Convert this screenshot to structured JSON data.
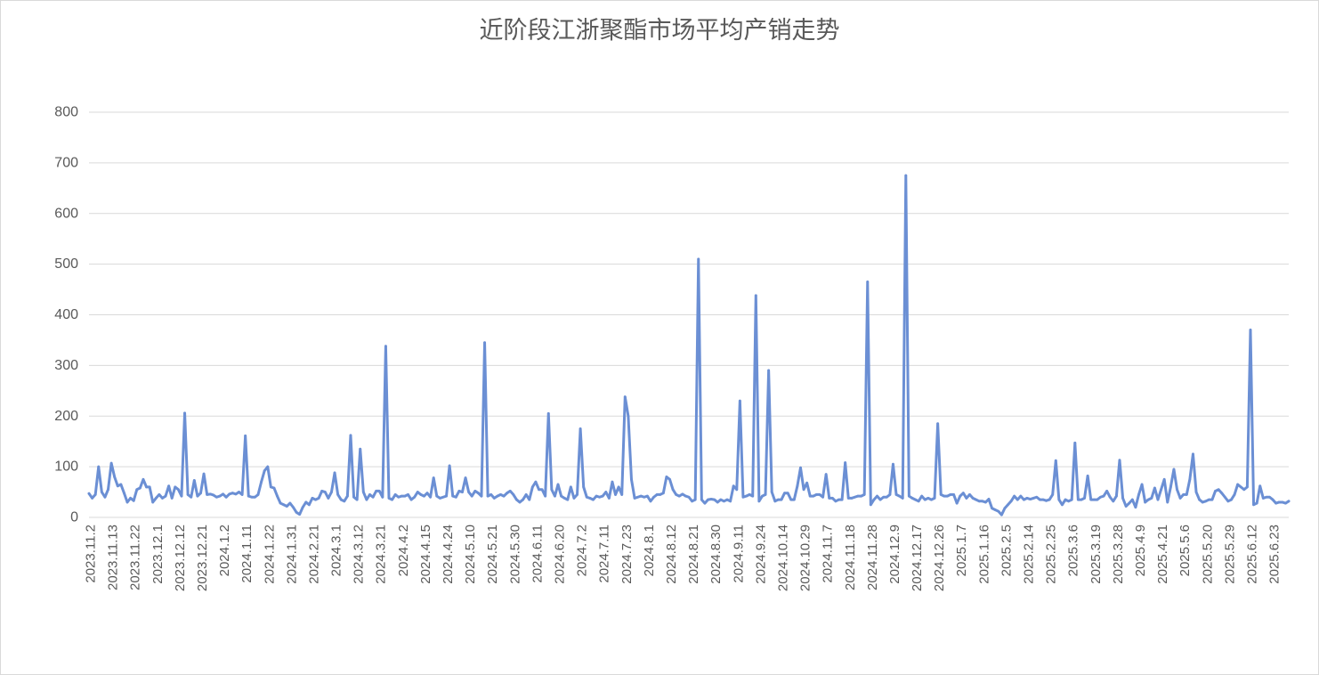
{
  "chart_data": {
    "type": "line",
    "title": "近阶段江浙聚酯市场平均产销走势",
    "ylim": [
      0,
      800
    ],
    "y_ticks": [
      0,
      100,
      200,
      300,
      400,
      500,
      600,
      700,
      800
    ],
    "grid": true,
    "x_label_interval": 7,
    "x_tick_labels": [
      "2023.11.2",
      "2023.11.13",
      "2023.11.22",
      "2023.12.1",
      "2023.12.12",
      "2023.12.21",
      "2024.1.2",
      "2024.1.11",
      "2024.1.22",
      "2024.1.31",
      "2024.2.21",
      "2024.3.1",
      "2024.3.12",
      "2024.3.21",
      "2024.4.2",
      "2024.4.15",
      "2024.4.24",
      "2024.5.10",
      "2024.5.21",
      "2024.5.30",
      "2024.6.11",
      "2024.6.20",
      "2024.7.2",
      "2024.7.11",
      "2024.7.23",
      "2024.8.1",
      "2024.8.12",
      "2024.8.21",
      "2024.8.30",
      "2024.9.11",
      "2024.9.24",
      "2024.10.14",
      "2024.10.29",
      "2024.11.7",
      "2024.11.18",
      "2024.11.28",
      "2024.12.9",
      "2024.12.17",
      "2024.12.26",
      "2025.1.7",
      "2025.1.16",
      "2025.2.5",
      "2025.2.14",
      "2025.2.25",
      "2025.3.6",
      "2025.3.19",
      "2025.3.28",
      "2025.4.9",
      "2025.4.21",
      "2025.5.6",
      "2025.5.20",
      "2025.5.29",
      "2025.6.12",
      "2025.6.23"
    ],
    "values": [
      47,
      38,
      45,
      100,
      50,
      40,
      55,
      107,
      80,
      62,
      65,
      48,
      30,
      38,
      33,
      55,
      58,
      75,
      60,
      60,
      30,
      38,
      45,
      38,
      42,
      62,
      38,
      60,
      55,
      42,
      206,
      45,
      40,
      73,
      42,
      48,
      86,
      45,
      46,
      44,
      40,
      42,
      46,
      40,
      46,
      48,
      46,
      50,
      45,
      161,
      42,
      40,
      40,
      45,
      70,
      92,
      100,
      60,
      58,
      42,
      28,
      25,
      22,
      28,
      20,
      10,
      6,
      20,
      30,
      25,
      38,
      35,
      38,
      52,
      50,
      38,
      50,
      88,
      45,
      35,
      32,
      42,
      162,
      40,
      35,
      135,
      50,
      35,
      45,
      40,
      52,
      52,
      40,
      338,
      38,
      35,
      45,
      40,
      42,
      42,
      45,
      35,
      40,
      50,
      45,
      42,
      48,
      40,
      78,
      42,
      38,
      40,
      42,
      102,
      42,
      40,
      52,
      50,
      78,
      50,
      42,
      52,
      48,
      42,
      345,
      42,
      45,
      38,
      42,
      45,
      42,
      48,
      52,
      45,
      35,
      30,
      35,
      45,
      35,
      60,
      70,
      55,
      55,
      42,
      205,
      55,
      42,
      65,
      42,
      38,
      35,
      60,
      38,
      45,
      175,
      60,
      40,
      38,
      35,
      42,
      40,
      42,
      50,
      38,
      70,
      45,
      60,
      45,
      238,
      200,
      75,
      38,
      40,
      42,
      40,
      42,
      32,
      40,
      45,
      45,
      48,
      80,
      75,
      55,
      45,
      42,
      46,
      42,
      40,
      32,
      35,
      510,
      35,
      28,
      35,
      36,
      35,
      30,
      35,
      32,
      35,
      32,
      62,
      55,
      230,
      40,
      42,
      45,
      42,
      438,
      32,
      42,
      45,
      290,
      50,
      32,
      35,
      35,
      48,
      48,
      35,
      35,
      62,
      98,
      55,
      68,
      42,
      42,
      45,
      45,
      40,
      85,
      38,
      38,
      32,
      35,
      35,
      108,
      38,
      38,
      40,
      42,
      42,
      45,
      465,
      25,
      35,
      42,
      35,
      40,
      40,
      45,
      105,
      45,
      42,
      38,
      675,
      42,
      38,
      35,
      32,
      42,
      35,
      38,
      35,
      38,
      185,
      45,
      42,
      42,
      45,
      45,
      28,
      42,
      48,
      38,
      45,
      38,
      35,
      32,
      32,
      30,
      36,
      18,
      15,
      12,
      5,
      18,
      25,
      32,
      42,
      35,
      42,
      35,
      38,
      36,
      38,
      40,
      35,
      35,
      33,
      35,
      45,
      112,
      35,
      25,
      35,
      32,
      35,
      147,
      35,
      35,
      38,
      82,
      35,
      35,
      35,
      40,
      42,
      52,
      40,
      32,
      42,
      113,
      38,
      22,
      28,
      35,
      20,
      45,
      65,
      30,
      35,
      38,
      58,
      35,
      55,
      75,
      30,
      60,
      95,
      55,
      38,
      45,
      45,
      75,
      125,
      50,
      35,
      30,
      32,
      35,
      35,
      52,
      55,
      48,
      40,
      32,
      35,
      45,
      65,
      60,
      55,
      60,
      370,
      25,
      28,
      62,
      38,
      40,
      40,
      35,
      28,
      30,
      30,
      28,
      32
    ],
    "line_color": "#6b8fd4",
    "grid_color": "#d9d9d9",
    "text_color": "#595959"
  }
}
